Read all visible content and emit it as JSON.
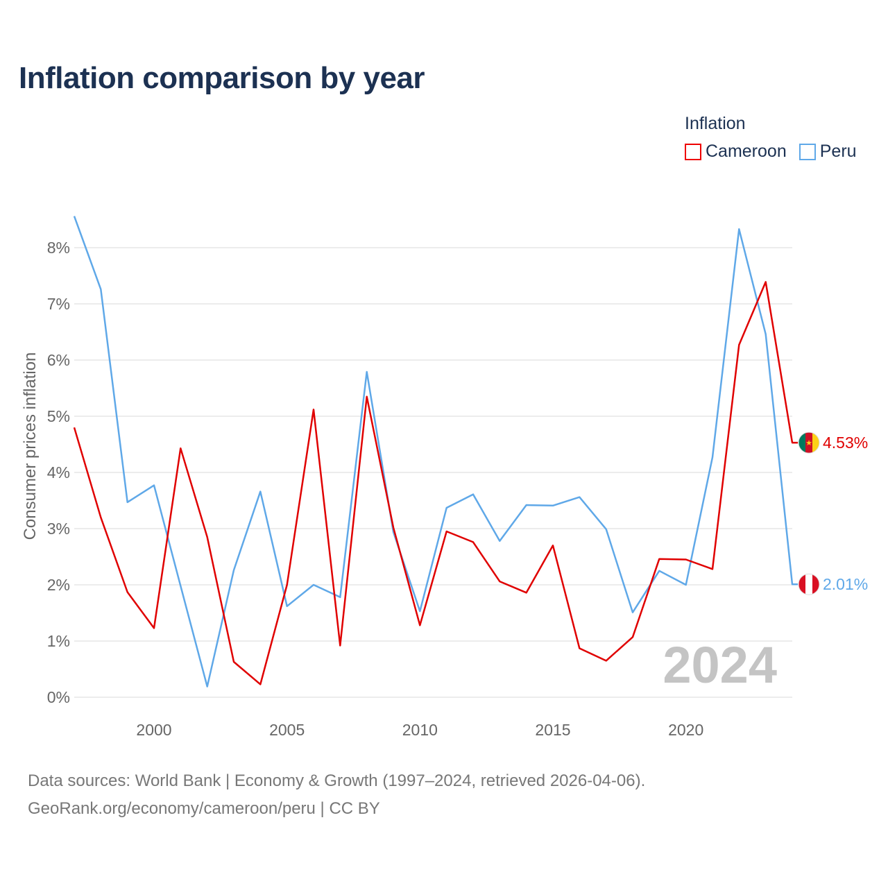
{
  "title": "Inflation comparison by year",
  "legend": {
    "title": "Inflation",
    "items": [
      {
        "label": "Cameroon",
        "color": "#e00000"
      },
      {
        "label": "Peru",
        "color": "#5fa8e8"
      }
    ]
  },
  "footer": {
    "line1": "Data sources: World Bank | Economy & Growth (1997–2024, retrieved 2026-04-06).",
    "line2": "GeoRank.org/economy/cameroon/peru | CC BY"
  },
  "year_stamp": "2024",
  "end_labels": {
    "cameroon": "4.53%",
    "peru": "2.01%"
  },
  "chart_data": {
    "type": "line",
    "title": "Inflation comparison by year",
    "xlabel": "",
    "ylabel": "Consumer prices inflation",
    "xlim": [
      1997,
      2024
    ],
    "ylim": [
      0,
      8.5
    ],
    "x_ticks": [
      2000,
      2005,
      2010,
      2015,
      2020
    ],
    "x_tick_labels": [
      "2000",
      "2005",
      "2010",
      "2015",
      "2020"
    ],
    "y_ticks": [
      0,
      1,
      2,
      3,
      4,
      5,
      6,
      7,
      8
    ],
    "y_tick_labels": [
      "0%",
      "1%",
      "2%",
      "3%",
      "4%",
      "5%",
      "6%",
      "7%",
      "8%"
    ],
    "grid": true,
    "legend_position": "top-right",
    "x": [
      1997,
      1998,
      1999,
      2000,
      2001,
      2002,
      2003,
      2004,
      2005,
      2006,
      2007,
      2008,
      2009,
      2010,
      2011,
      2012,
      2013,
      2014,
      2015,
      2016,
      2017,
      2018,
      2019,
      2020,
      2021,
      2022,
      2023,
      2024
    ],
    "series": [
      {
        "name": "Cameroon",
        "color": "#e00000",
        "values": [
          4.8,
          3.2,
          1.87,
          1.23,
          4.43,
          2.85,
          0.63,
          0.23,
          2.0,
          5.12,
          0.92,
          5.35,
          3.02,
          1.28,
          2.95,
          2.76,
          2.06,
          1.86,
          2.7,
          0.87,
          0.65,
          1.07,
          2.46,
          2.45,
          2.28,
          6.27,
          7.39,
          4.53
        ]
      },
      {
        "name": "Peru",
        "color": "#5fa8e8",
        "values": [
          8.56,
          7.26,
          3.47,
          3.77,
          1.98,
          0.19,
          2.26,
          3.66,
          1.62,
          2.0,
          1.78,
          5.79,
          2.94,
          1.53,
          3.37,
          3.61,
          2.78,
          3.42,
          3.41,
          3.56,
          2.99,
          1.51,
          2.25,
          2.0,
          4.27,
          8.33,
          6.46,
          2.01
        ]
      }
    ]
  }
}
